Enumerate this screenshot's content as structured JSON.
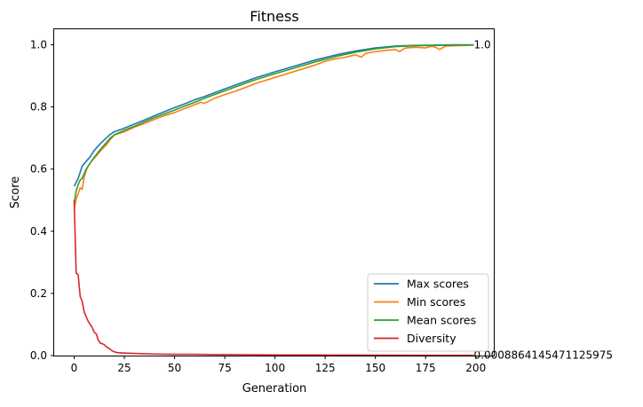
{
  "chart_data": {
    "type": "line",
    "title": "Fitness",
    "xlabel": "Generation",
    "ylabel": "Score",
    "xlim": [
      -9.95,
      208.95
    ],
    "ylim": [
      0,
      1.05
    ],
    "xticks": [
      0,
      25,
      50,
      75,
      100,
      125,
      150,
      175,
      200
    ],
    "xtick_labels": [
      "0",
      "25",
      "50",
      "75",
      "100",
      "125",
      "150",
      "175",
      "200"
    ],
    "yticks": [
      0.0,
      0.2,
      0.4,
      0.6,
      0.8,
      1.0
    ],
    "ytick_labels": [
      "0.0",
      "0.2",
      "0.4",
      "0.6",
      "0.8",
      "1.0"
    ],
    "grid": false,
    "legend_position": "lower-right",
    "annotations": [
      {
        "text": "1.0",
        "x": 199,
        "y": 1.0
      },
      {
        "text": "0.0008864145471125975",
        "x": 199,
        "y": 0.0008864145471125975
      }
    ],
    "series": [
      {
        "name": "Max scores",
        "color": "#1f77b4",
        "x": [
          0,
          2,
          4,
          6,
          8,
          10,
          12,
          14,
          16,
          18,
          20,
          25,
          30,
          35,
          40,
          45,
          50,
          55,
          60,
          65,
          70,
          75,
          80,
          90,
          100,
          110,
          120,
          130,
          140,
          150,
          160,
          170,
          180,
          190,
          199
        ],
        "y": [
          0.545,
          0.57,
          0.61,
          0.625,
          0.64,
          0.66,
          0.675,
          0.688,
          0.7,
          0.712,
          0.72,
          0.732,
          0.745,
          0.758,
          0.772,
          0.785,
          0.798,
          0.81,
          0.823,
          0.834,
          0.846,
          0.858,
          0.87,
          0.893,
          0.913,
          0.932,
          0.951,
          0.967,
          0.98,
          0.99,
          0.996,
          0.998,
          0.999,
          1.0,
          1.0
        ]
      },
      {
        "name": "Min scores",
        "color": "#ff7f0e",
        "x": [
          0,
          1,
          2,
          3,
          4,
          5,
          6,
          7,
          8,
          9,
          10,
          12,
          14,
          16,
          18,
          20,
          25,
          30,
          35,
          40,
          45,
          50,
          55,
          60,
          63,
          65,
          70,
          75,
          80,
          85,
          90,
          95,
          100,
          105,
          110,
          115,
          120,
          125,
          130,
          135,
          140,
          143,
          145,
          150,
          155,
          160,
          162,
          165,
          170,
          175,
          178,
          180,
          182,
          185,
          190,
          195,
          199
        ],
        "y": [
          0.47,
          0.505,
          0.52,
          0.54,
          0.535,
          0.575,
          0.595,
          0.61,
          0.62,
          0.628,
          0.635,
          0.65,
          0.665,
          0.678,
          0.695,
          0.71,
          0.72,
          0.735,
          0.747,
          0.76,
          0.772,
          0.782,
          0.795,
          0.807,
          0.815,
          0.812,
          0.828,
          0.84,
          0.85,
          0.862,
          0.875,
          0.885,
          0.895,
          0.905,
          0.915,
          0.925,
          0.935,
          0.947,
          0.955,
          0.96,
          0.968,
          0.96,
          0.972,
          0.978,
          0.982,
          0.985,
          0.978,
          0.99,
          0.992,
          0.99,
          0.995,
          0.992,
          0.985,
          0.996,
          0.997,
          0.998,
          0.999
        ]
      },
      {
        "name": "Mean scores",
        "color": "#2ca02c",
        "x": [
          0,
          1,
          2,
          3,
          4,
          6,
          8,
          10,
          12,
          14,
          16,
          18,
          20,
          25,
          30,
          35,
          40,
          45,
          50,
          55,
          60,
          65,
          70,
          75,
          80,
          90,
          100,
          110,
          120,
          130,
          140,
          150,
          160,
          170,
          180,
          190,
          199
        ],
        "y": [
          0.49,
          0.53,
          0.55,
          0.565,
          0.57,
          0.6,
          0.62,
          0.638,
          0.655,
          0.67,
          0.685,
          0.7,
          0.71,
          0.725,
          0.738,
          0.752,
          0.766,
          0.778,
          0.79,
          0.803,
          0.815,
          0.828,
          0.84,
          0.852,
          0.864,
          0.887,
          0.907,
          0.926,
          0.945,
          0.962,
          0.976,
          0.987,
          0.994,
          0.997,
          0.998,
          0.999,
          0.999
        ]
      },
      {
        "name": "Diversity",
        "color": "#d62728",
        "x": [
          0,
          1,
          2,
          3,
          4,
          5,
          6,
          7,
          8,
          9,
          10,
          11,
          12,
          13,
          14,
          15,
          16,
          17,
          18,
          19,
          20,
          22,
          25,
          30,
          35,
          40,
          50,
          60,
          70,
          80,
          100,
          120,
          140,
          160,
          180,
          199
        ],
        "y": [
          0.5,
          0.265,
          0.26,
          0.19,
          0.175,
          0.14,
          0.125,
          0.11,
          0.1,
          0.09,
          0.075,
          0.07,
          0.05,
          0.04,
          0.038,
          0.035,
          0.028,
          0.025,
          0.02,
          0.015,
          0.012,
          0.009,
          0.008,
          0.007,
          0.006,
          0.005,
          0.004,
          0.004,
          0.003,
          0.003,
          0.002,
          0.002,
          0.0015,
          0.0012,
          0.001,
          0.0008864145471125975
        ]
      }
    ]
  }
}
